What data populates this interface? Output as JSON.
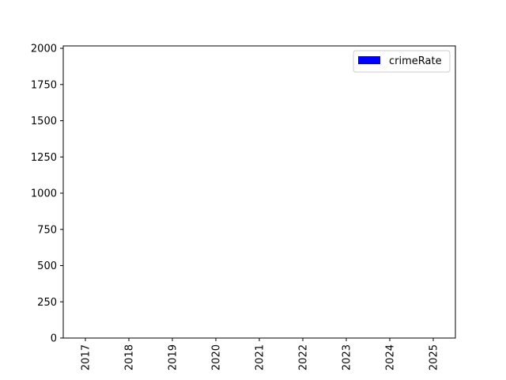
{
  "chart_data": {
    "type": "bar",
    "categories": [
      "2017",
      "2018",
      "2019",
      "2020",
      "2021",
      "2022",
      "2023",
      "2024",
      "2025"
    ],
    "series": [
      {
        "name": "crimeRate",
        "color": "#0000ff",
        "values": [
          0,
          0,
          0,
          0,
          0,
          0,
          0,
          0,
          0
        ]
      }
    ],
    "y_ticks": [
      "0",
      "250",
      "500",
      "750",
      "1000",
      "1250",
      "1500",
      "1750",
      "2000"
    ],
    "ylim": [
      0,
      2000
    ],
    "x_tick_rotation": "vertical",
    "grid": false,
    "legend_position": "upper right"
  }
}
